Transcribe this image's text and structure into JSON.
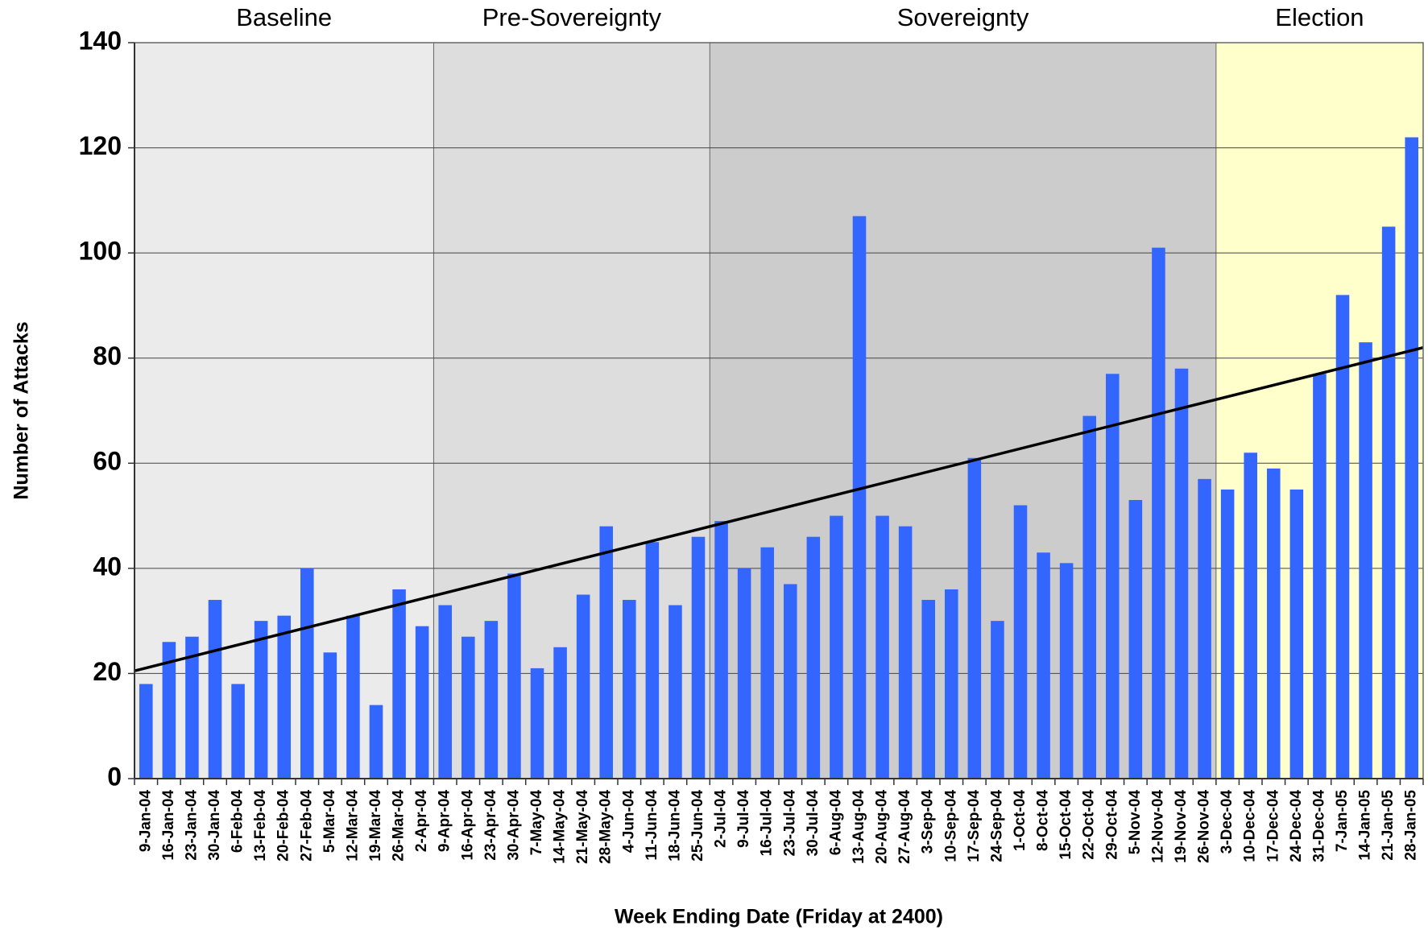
{
  "chart_data": {
    "type": "bar",
    "ylabel": "Number of Attacks",
    "xlabel": "Week Ending Date (Friday at 2400)",
    "categories": [
      "9-Jan-04",
      "16-Jan-04",
      "23-Jan-04",
      "30-Jan-04",
      "6-Feb-04",
      "13-Feb-04",
      "20-Feb-04",
      "27-Feb-04",
      "5-Mar-04",
      "12-Mar-04",
      "19-Mar-04",
      "26-Mar-04",
      "2-Apr-04",
      "9-Apr-04",
      "16-Apr-04",
      "23-Apr-04",
      "30-Apr-04",
      "7-May-04",
      "14-May-04",
      "21-May-04",
      "28-May-04",
      "4-Jun-04",
      "11-Jun-04",
      "18-Jun-04",
      "25-Jun-04",
      "2-Jul-04",
      "9-Jul-04",
      "16-Jul-04",
      "23-Jul-04",
      "30-Jul-04",
      "6-Aug-04",
      "13-Aug-04",
      "20-Aug-04",
      "27-Aug-04",
      "3-Sep-04",
      "10-Sep-04",
      "17-Sep-04",
      "24-Sep-04",
      "1-Oct-04",
      "8-Oct-04",
      "15-Oct-04",
      "22-Oct-04",
      "29-Oct-04",
      "5-Nov-04",
      "12-Nov-04",
      "19-Nov-04",
      "26-Nov-04",
      "3-Dec-04",
      "10-Dec-04",
      "17-Dec-04",
      "24-Dec-04",
      "31-Dec-04",
      "7-Jan-05",
      "14-Jan-05",
      "21-Jan-05",
      "28-Jan-05"
    ],
    "values": [
      18,
      26,
      27,
      34,
      18,
      30,
      31,
      40,
      24,
      31,
      14,
      36,
      29,
      33,
      27,
      30,
      39,
      21,
      25,
      35,
      48,
      34,
      45,
      33,
      46,
      49,
      40,
      44,
      37,
      46,
      50,
      107,
      50,
      48,
      34,
      36,
      61,
      30,
      52,
      43,
      41,
      69,
      77,
      53,
      101,
      78,
      57,
      55,
      62,
      59,
      55,
      77,
      92,
      83,
      105,
      122
    ],
    "color": "#3366ff",
    "trend": [
      20.5,
      82
    ],
    "trend_color": "#000000",
    "regions": [
      {
        "label": "Baseline",
        "from": "9-Jan-04",
        "to": "2-Apr-04",
        "color": "#ebebeb"
      },
      {
        "label": "Pre-Sovereignty",
        "from": "9-Apr-04",
        "to": "25-Jun-04",
        "color": "#dddddd"
      },
      {
        "label": "Sovereignty",
        "from": "2-Jul-04",
        "to": "26-Nov-04",
        "color": "#cccccc"
      },
      {
        "label": "Election",
        "from": "3-Dec-04",
        "to": "28-Jan-05",
        "color": "#ffffcc"
      }
    ],
    "ylim": [
      0,
      140
    ],
    "yticks": [
      0,
      20,
      40,
      60,
      80,
      100,
      120,
      140
    ],
    "grid": true
  }
}
